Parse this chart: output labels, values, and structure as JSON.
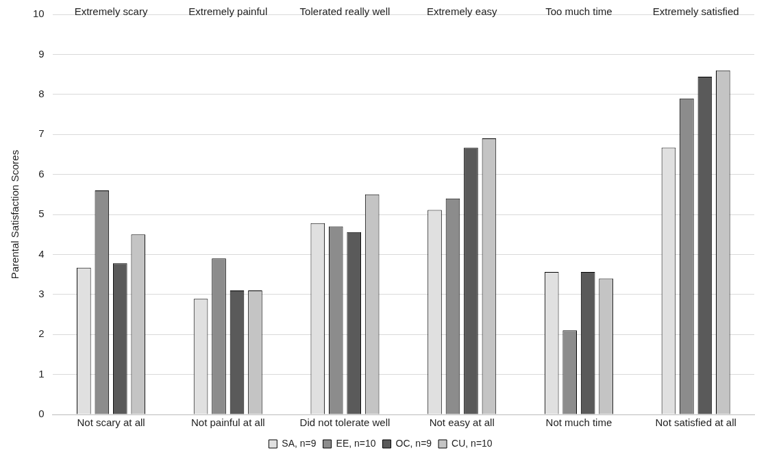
{
  "chart_data": {
    "type": "bar",
    "ylabel": "Parental Satisfaction Scores",
    "categories": [
      "Not scary at all",
      "Not painful at all",
      "Did not tolerate well",
      "Not easy at all",
      "Not much time",
      "Not satisfied at all"
    ],
    "series": [
      {
        "name": "SA, n=9",
        "color": "#e0e0e0",
        "values": [
          3.67,
          2.89,
          4.78,
          5.11,
          3.56,
          6.67
        ]
      },
      {
        "name": "EE, n=10",
        "color": "#8c8c8c",
        "values": [
          5.6,
          3.9,
          4.7,
          5.4,
          2.1,
          7.9
        ]
      },
      {
        "name": "OC, n=9",
        "color": "#5a5a5a",
        "values": [
          3.78,
          3.1,
          4.56,
          6.67,
          3.56,
          8.44
        ]
      },
      {
        "name": "CU, n=10",
        "color": "#c4c4c4",
        "values": [
          4.5,
          3.1,
          5.5,
          6.9,
          3.4,
          8.6
        ]
      }
    ],
    "annotations": [
      "Extremely scary",
      "Extremely painful",
      "Tolerated really well",
      "Extremely easy",
      "Too much time",
      "Extremely satisfied"
    ],
    "ylim": [
      0,
      10
    ],
    "yticks": [
      0,
      1,
      2,
      3,
      4,
      5,
      6,
      7,
      8,
      9,
      10
    ],
    "grid": "y",
    "legend": "bottom"
  }
}
